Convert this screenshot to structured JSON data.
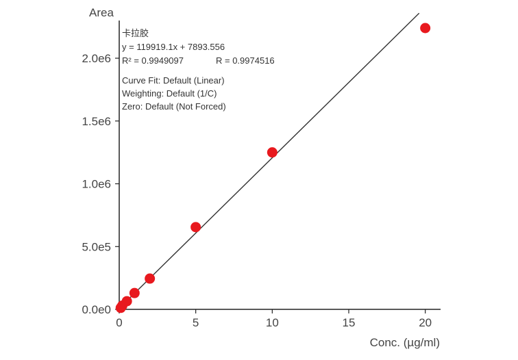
{
  "chart_data": {
    "type": "scatter",
    "xlabel": "Conc. (µg/ml)",
    "ylabel": "Area",
    "xlim": [
      0,
      21
    ],
    "ylim": [
      0,
      2300000
    ],
    "x_ticks": [
      0,
      5,
      10,
      15,
      20
    ],
    "x_tick_labels": [
      "0",
      "5",
      "10",
      "15",
      "20"
    ],
    "y_ticks": [
      0,
      500000,
      1000000,
      1500000,
      2000000
    ],
    "y_tick_labels": [
      "0.0e0",
      "5.0e5",
      "1.0e6",
      "1.5e6",
      "2.0e6"
    ],
    "grid": false,
    "points": [
      {
        "x": 0.1,
        "y": 12000
      },
      {
        "x": 0.2,
        "y": 30000
      },
      {
        "x": 0.5,
        "y": 65000
      },
      {
        "x": 1,
        "y": 130000
      },
      {
        "x": 2,
        "y": 245000
      },
      {
        "x": 5,
        "y": 655000
      },
      {
        "x": 10,
        "y": 1250000
      },
      {
        "x": 20,
        "y": 2240000
      }
    ],
    "point_color": "#e8191e",
    "fit_line": {
      "slope": 119919.1,
      "intercept": 7893.556,
      "x_range": [
        0,
        19.6
      ]
    },
    "annotations": {
      "compound": "卡拉胶",
      "equation": "y = 119919.1x + 7893.556",
      "r_squared": "R² = 0.9949097",
      "r": "R = 0.9974516",
      "curve_fit": "Curve Fit: Default (Linear)",
      "weighting": "Weighting: Default (1/C)",
      "zero": "Zero: Default (Not Forced)"
    }
  }
}
